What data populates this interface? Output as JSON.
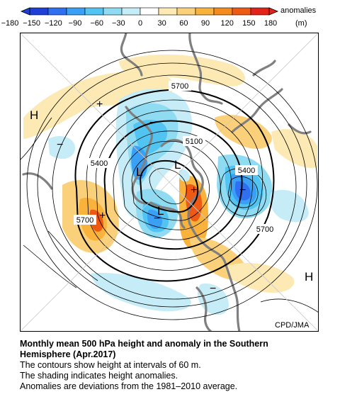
{
  "colorbar": {
    "ticks": [
      "−180",
      "−150",
      "−120",
      "−90",
      "−60",
      "−30",
      "0",
      "30",
      "60",
      "90",
      "120",
      "150",
      "180"
    ],
    "label": "anomalies",
    "unit": "(m)",
    "colors": [
      "#1e3fd6",
      "#2f6ff0",
      "#3aa0f5",
      "#52c4f2",
      "#8fdcf2",
      "#c6edf7",
      "#ffffff",
      "#fde9b3",
      "#fbd07a",
      "#f9b23c",
      "#f58a1f",
      "#ee5a14",
      "#e2231a"
    ]
  },
  "map": {
    "pressure_symbols": [
      {
        "name": "high-west",
        "text": "H"
      },
      {
        "name": "high-southeast",
        "text": "H"
      },
      {
        "name": "low-center-1",
        "text": "L"
      },
      {
        "name": "low-center-2",
        "text": "L"
      },
      {
        "name": "low-center-3",
        "text": "L"
      }
    ],
    "anomaly_signs": {
      "plus": "+",
      "minus": "−"
    },
    "contour_labels": [
      {
        "name": "contour-5700-top",
        "text": "5700"
      },
      {
        "name": "contour-5100",
        "text": "5100"
      },
      {
        "name": "contour-5400-left",
        "text": "5400"
      },
      {
        "name": "contour-5400-right",
        "text": "5400"
      },
      {
        "name": "contour-5700-left",
        "text": "5700"
      },
      {
        "name": "contour-5700-right",
        "text": "5700"
      }
    ],
    "credit": "CPD/JMA"
  },
  "caption": {
    "title_line1": "Monthly mean 500 hPa height and anomaly in the Southern",
    "title_line2": "Hemisphere (Apr.2017)",
    "line3": "The contours show height at intervals of 60 m.",
    "line4": "The shading indicates height anomalies.",
    "line5": "Anomalies are deviations from the 1981–2010 average."
  }
}
